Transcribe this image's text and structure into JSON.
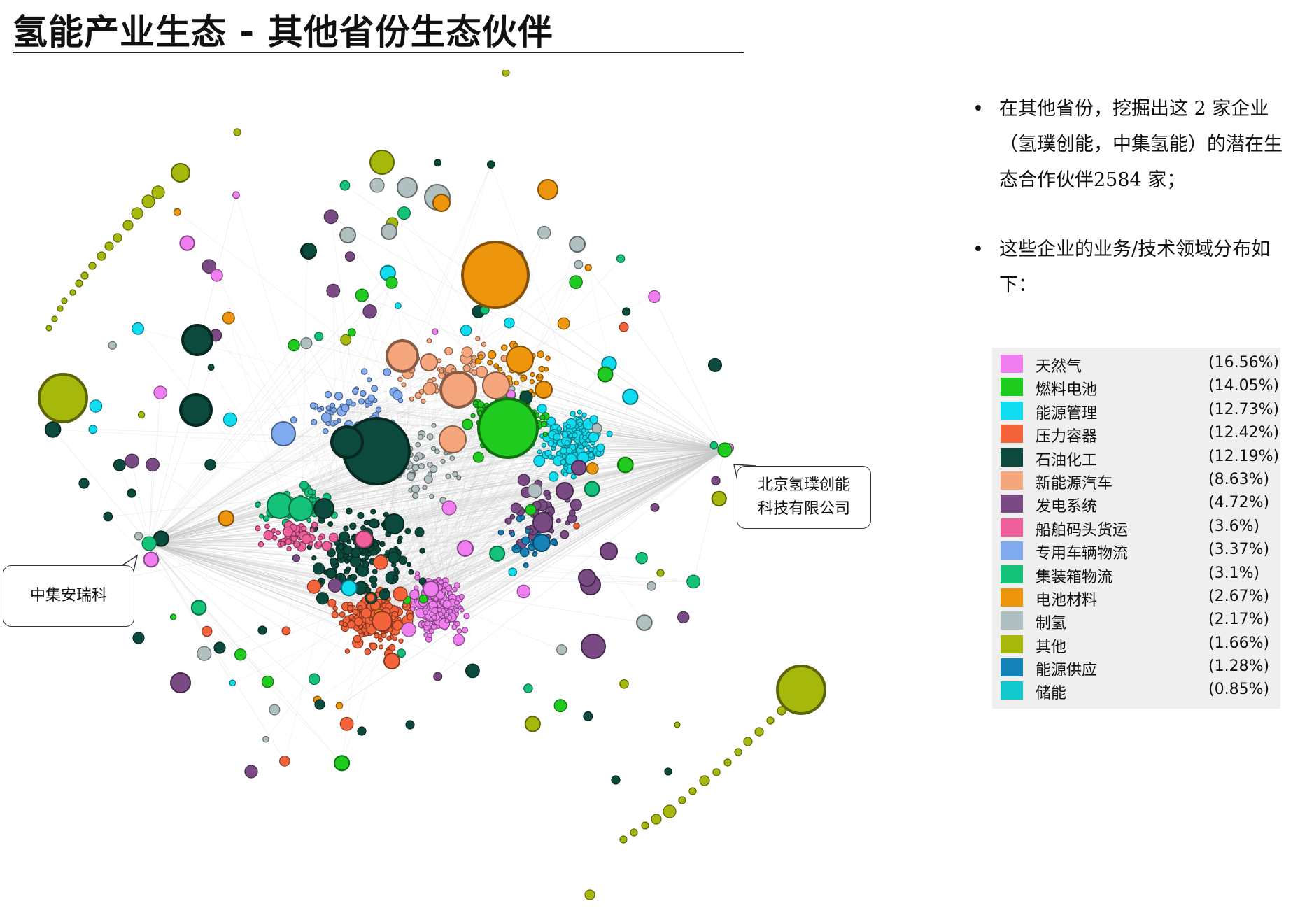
{
  "title": "氢能产业生态 - 其他省份生态伙伴",
  "callouts": {
    "beijing": "北京氢璞创能\n科技有限公司",
    "cimc": "中集安瑞科"
  },
  "bullets": [
    "在其他省份，挖掘出这 2 家企业（氢璞创能，中集氢能）的潜在生态合作伙伴2584 家；",
    "这些企业的业务/技术领域分布如下："
  ],
  "legend": [
    {
      "label": "天然气",
      "pct": "(16.56%)",
      "color": "#f07ef0"
    },
    {
      "label": "燃料电池",
      "pct": "(14.05%)",
      "color": "#1ecb1e"
    },
    {
      "label": "能源管理",
      "pct": "(12.73%)",
      "color": "#10dcf0"
    },
    {
      "label": "压力容器",
      "pct": "(12.42%)",
      "color": "#f4633a"
    },
    {
      "label": "石油化工",
      "pct": "(12.19%)",
      "color": "#0b4a3c"
    },
    {
      "label": "新能源汽车",
      "pct": "(8.63%)",
      "color": "#f6a67c"
    },
    {
      "label": "发电系统",
      "pct": "(4.72%)",
      "color": "#7a4a84"
    },
    {
      "label": "船舶码头货运",
      "pct": "(3.6%)",
      "color": "#ee5f9c"
    },
    {
      "label": "专用车辆物流",
      "pct": "(3.37%)",
      "color": "#7faaf0"
    },
    {
      "label": "集装箱物流",
      "pct": "(3.1%)",
      "color": "#14c27a"
    },
    {
      "label": "电池材料",
      "pct": "(2.67%)",
      "color": "#ee950e"
    },
    {
      "label": "制氢",
      "pct": "(2.17%)",
      "color": "#b0bfbf"
    },
    {
      "label": "其他",
      "pct": "(1.66%)",
      "color": "#a6b80c"
    },
    {
      "label": "能源供应",
      "pct": "(1.28%)",
      "color": "#1582b8"
    },
    {
      "label": "储能",
      "pct": "(0.85%)",
      "color": "#12c8cc"
    }
  ]
}
